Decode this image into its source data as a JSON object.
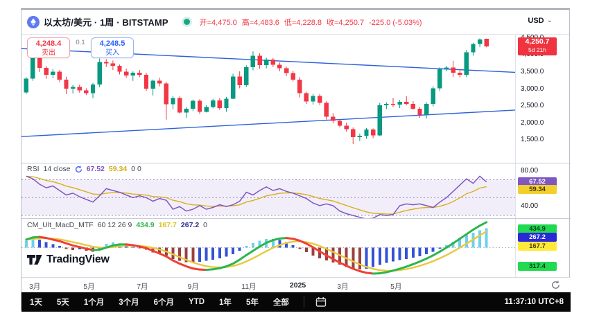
{
  "header": {
    "symbol": "以太坊/美元 · 1周 · BITSTAMP",
    "ohlc": {
      "open": "开=4,475.0",
      "high": "高=4,483.6",
      "low": "低=4,228.8",
      "close": "收=4,250.7",
      "change": "-225.0 (-5.03%)"
    },
    "currency": "USD",
    "sell": {
      "price": "4,248.4",
      "label": "卖出"
    },
    "spread": "0.1",
    "buy": {
      "price": "4,248.5",
      "label": "买入"
    }
  },
  "rsi_header": {
    "title": "RSI",
    "params": "14 close",
    "value": "67.52",
    "ma_value": "59.34",
    "extra": "0 0"
  },
  "macd_header": {
    "title": "CM_Ult_MacD_MTF",
    "params": "60 12 26 9",
    "v1": "434.9",
    "v2": "167.7",
    "v3": "267.2",
    "v4": "0"
  },
  "logo": {
    "text": "TradingView"
  },
  "axis": {
    "main_labels": [
      {
        "v": 4500,
        "t": "4,500.0"
      },
      {
        "v": 4000,
        "t": "4,000.0"
      },
      {
        "v": 3500,
        "t": "3,500.0"
      },
      {
        "v": 3000,
        "t": "3,000.0"
      },
      {
        "v": 2500,
        "t": "2,500.0"
      },
      {
        "v": 2000,
        "t": "2,000.0"
      },
      {
        "v": 1500,
        "t": "1,500.0"
      }
    ],
    "main_badge": {
      "v": 4250.7,
      "price": "4,250.7",
      "countdown": "5d 21h",
      "bg": "#ef333f",
      "fg": "#ffffff"
    },
    "rsi_labels": [
      {
        "v": 80,
        "t": "80.00"
      },
      {
        "v": 40,
        "t": "40.00"
      }
    ],
    "rsi_badges": [
      {
        "v": 67.52,
        "t": "67.52",
        "bg": "#7e57c2",
        "fg": "#ffffff"
      },
      {
        "v": 59.34,
        "t": "59.34",
        "bg": "#f2cf2c",
        "fg": "#43350a"
      }
    ],
    "macd_badges": [
      {
        "pos": 700,
        "t": "434.9",
        "bg": "#22d952",
        "fg": "#083d12"
      },
      {
        "pos": 380,
        "t": "267.2",
        "bg": "#2b28d8",
        "fg": "#ffffff"
      },
      {
        "pos": 60,
        "t": "167.7",
        "bg": "#ffe93b",
        "fg": "#4d3d00"
      },
      {
        "pos": -700,
        "t": "317.4",
        "bg": "#22d952",
        "fg": "#083d12"
      }
    ]
  },
  "time_axis": {
    "labels": [
      {
        "x": 0.007,
        "t": "3月"
      },
      {
        "x": 0.117,
        "t": "5月"
      },
      {
        "x": 0.225,
        "t": "7月"
      },
      {
        "x": 0.328,
        "t": "9月"
      },
      {
        "x": 0.437,
        "t": "11月"
      },
      {
        "x": 0.535,
        "t": "2025",
        "bold": true
      },
      {
        "x": 0.631,
        "t": "3月"
      },
      {
        "x": 0.739,
        "t": "5月"
      }
    ]
  },
  "toolbar": {
    "items": [
      "1天",
      "5天",
      "1个月",
      "3个月",
      "6个月",
      "YTD",
      "1年",
      "5年",
      "全部"
    ],
    "clock": "11:37:10 UTC+8"
  },
  "colors": {
    "up": "#089981",
    "down": "#f23645",
    "trend": "#2f62d9",
    "rsi_line": "#7e57c2",
    "rsi_ma": "#d9b01c",
    "rsi_band": "rgba(126,87,194,0.10)",
    "hist_up": "#6ed0ee",
    "hist_dn": "#3352d4",
    "hist_neg": "#9c4040",
    "macd_up": "#2db54d",
    "macd_dn": "#ef4034",
    "signal": "#e7c93f"
  },
  "chart_data": {
    "type": "candlestick",
    "symbol": "ETHUSD · 1W · BITSTAMP",
    "price_range": [
      830,
      4600
    ],
    "candles": [
      [
        2900,
        3350,
        2850,
        3310
      ],
      [
        3310,
        4005,
        3240,
        3940
      ],
      [
        3940,
        4093,
        3500,
        3620
      ],
      [
        3620,
        3680,
        3300,
        3420
      ],
      [
        3420,
        3590,
        3320,
        3510
      ],
      [
        3510,
        3560,
        3200,
        3280
      ],
      [
        3280,
        3360,
        2850,
        3010
      ],
      [
        3010,
        3120,
        2870,
        3060
      ],
      [
        3060,
        3130,
        2890,
        2960
      ],
      [
        2960,
        3020,
        2820,
        2880
      ],
      [
        2880,
        3180,
        2730,
        3130
      ],
      [
        3130,
        3900,
        3050,
        3790
      ],
      [
        3790,
        3880,
        3650,
        3750
      ],
      [
        3750,
        3840,
        3560,
        3680
      ],
      [
        3680,
        3720,
        3430,
        3510
      ],
      [
        3510,
        3600,
        3330,
        3400
      ],
      [
        3400,
        3520,
        3240,
        3480
      ],
      [
        3480,
        3560,
        3350,
        3420
      ],
      [
        3420,
        3480,
        2950,
        3010
      ],
      [
        3010,
        3280,
        2810,
        3240
      ],
      [
        3240,
        3330,
        3080,
        3160
      ],
      [
        3160,
        3210,
        2100,
        2550
      ],
      [
        2550,
        2790,
        2400,
        2740
      ],
      [
        2740,
        2780,
        2280,
        2310
      ],
      [
        2310,
        2470,
        2150,
        2420
      ],
      [
        2420,
        2690,
        2350,
        2650
      ],
      [
        2650,
        2700,
        2270,
        2330
      ],
      [
        2330,
        2520,
        2310,
        2470
      ],
      [
        2470,
        2710,
        2430,
        2660
      ],
      [
        2660,
        2730,
        2380,
        2440
      ],
      [
        2440,
        2770,
        2330,
        2720
      ],
      [
        2720,
        3450,
        2700,
        3370
      ],
      [
        3370,
        3520,
        3020,
        3110
      ],
      [
        3110,
        3700,
        3060,
        3640
      ],
      [
        3640,
        4107,
        3550,
        3980
      ],
      [
        3980,
        4050,
        3600,
        3700
      ],
      [
        3700,
        3920,
        3610,
        3870
      ],
      [
        3870,
        3910,
        3650,
        3710
      ],
      [
        3710,
        3780,
        3520,
        3610
      ],
      [
        3610,
        3660,
        3380,
        3470
      ],
      [
        3470,
        3540,
        3220,
        3280
      ],
      [
        3280,
        3350,
        2750,
        2880
      ],
      [
        2880,
        2920,
        2560,
        2630
      ],
      [
        2630,
        2860,
        2540,
        2800
      ],
      [
        2800,
        2850,
        2530,
        2590
      ],
      [
        2590,
        2640,
        2100,
        2190
      ],
      [
        2190,
        2290,
        1990,
        2060
      ],
      [
        2060,
        2110,
        1870,
        1920
      ],
      [
        1920,
        2010,
        1750,
        1820
      ],
      [
        1820,
        1870,
        1380,
        1580
      ],
      [
        1580,
        1690,
        1470,
        1620
      ],
      [
        1620,
        1850,
        1540,
        1810
      ],
      [
        1810,
        1840,
        1550,
        1640
      ],
      [
        1640,
        2590,
        1610,
        2520
      ],
      [
        2520,
        2610,
        2410,
        2560
      ],
      [
        2560,
        2740,
        2470,
        2540
      ],
      [
        2540,
        2680,
        2440,
        2620
      ],
      [
        2620,
        2790,
        2520,
        2560
      ],
      [
        2560,
        2640,
        2390,
        2420
      ],
      [
        2420,
        2470,
        2150,
        2240
      ],
      [
        2240,
        2610,
        2130,
        2560
      ],
      [
        2560,
        3080,
        2490,
        3020
      ],
      [
        3020,
        3640,
        2940,
        3580
      ],
      [
        3580,
        3680,
        3520,
        3630
      ],
      [
        3630,
        3830,
        3350,
        3480
      ],
      [
        3480,
        3560,
        3340,
        3420
      ],
      [
        3420,
        4150,
        3350,
        4080
      ],
      [
        4080,
        4360,
        3980,
        4320
      ],
      [
        4320,
        4490,
        4230,
        4460
      ],
      [
        4475,
        4483.6,
        4228.8,
        4250.7
      ]
    ],
    "trendlines": [
      {
        "from_price": 4190,
        "to_price": 3490
      },
      {
        "from_price": 1600,
        "to_price": 2380
      }
    ],
    "indicators": [
      {
        "type": "line",
        "name": "RSI 14 close",
        "range": [
          27,
          89
        ],
        "levels": [
          70,
          50,
          30
        ],
        "band": [
          30,
          70
        ],
        "values": [
          74,
          71,
          65,
          61,
          63,
          58,
          53,
          55,
          51,
          48,
          45,
          52,
          60,
          58,
          56,
          53,
          50,
          52,
          50,
          46,
          49,
          47,
          37,
          40,
          35,
          37,
          41,
          37,
          39,
          42,
          40,
          42,
          46,
          56,
          53,
          58,
          62,
          58,
          60,
          57,
          55,
          52,
          49,
          44,
          41,
          43,
          41,
          35,
          32,
          30,
          28,
          26,
          27,
          31,
          30,
          31,
          41,
          43,
          42,
          43,
          41,
          39,
          45,
          50,
          57,
          64,
          71,
          66,
          74,
          67.52
        ]
      },
      {
        "type": "macd",
        "name": "CM_Ult_MacD_MTF 60 12 26 9",
        "range": [
          -1100,
          1100
        ],
        "macd": [
          300,
          380,
          400,
          360,
          300,
          240,
          160,
          80,
          20,
          -40,
          -90,
          -80,
          0,
          80,
          120,
          120,
          90,
          40,
          -20,
          -120,
          -220,
          -330,
          -480,
          -600,
          -700,
          -780,
          -820,
          -830,
          -810,
          -770,
          -700,
          -600,
          -450,
          -280,
          -120,
          40,
          180,
          280,
          340,
          360,
          330,
          260,
          150,
          10,
          -140,
          -290,
          -430,
          -560,
          -680,
          -790,
          -880,
          -940,
          -970,
          -960,
          -920,
          -860,
          -790,
          -710,
          -620,
          -520,
          -410,
          -290,
          -150,
          0,
          160,
          330,
          500,
          670,
          820,
          950
        ],
        "hist": [
          260,
          340,
          300,
          210,
          130,
          60,
          -50,
          -90,
          -60,
          -110,
          -160,
          -60,
          140,
          190,
          150,
          90,
          30,
          -30,
          -80,
          -180,
          -240,
          -300,
          -430,
          -490,
          -540,
          -570,
          -530,
          -490,
          -450,
          -400,
          -330,
          -250,
          -110,
          60,
          170,
          260,
          320,
          330,
          290,
          210,
          90,
          -50,
          -170,
          -300,
          -400,
          -480,
          -560,
          -640,
          -720,
          -780,
          -810,
          -790,
          -730,
          -650,
          -570,
          -520,
          -470,
          -430,
          -380,
          -320,
          -240,
          -150,
          -40,
          90,
          220,
          350,
          460,
          560,
          650,
          720
        ]
      }
    ]
  }
}
